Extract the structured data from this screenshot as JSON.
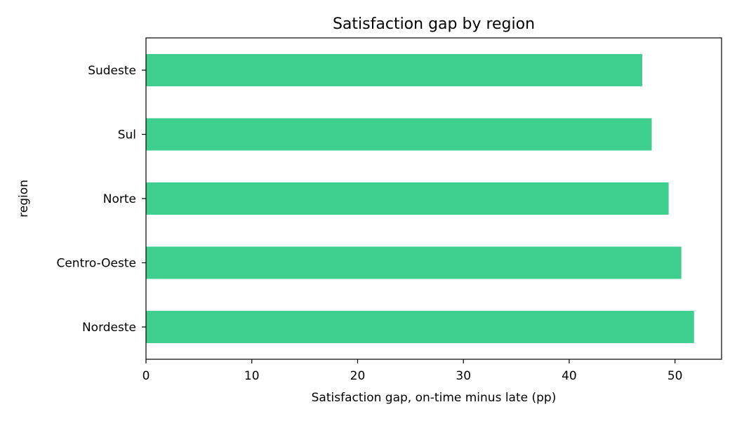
{
  "chart_data": {
    "type": "bar",
    "orientation": "horizontal",
    "title": "Satisfaction gap by region",
    "xlabel": "Satisfaction gap, on-time minus late (pp)",
    "ylabel": "region",
    "categories": [
      "Nordeste",
      "Centro-Oeste",
      "Norte",
      "Sul",
      "Sudeste"
    ],
    "values": [
      51.8,
      50.6,
      49.4,
      47.8,
      46.9
    ],
    "xlim": [
      0,
      54.4
    ],
    "xticks": [
      0,
      10,
      20,
      30,
      40,
      50
    ],
    "bar_color": "#3ecf8e",
    "grid": false,
    "legend": "none"
  }
}
